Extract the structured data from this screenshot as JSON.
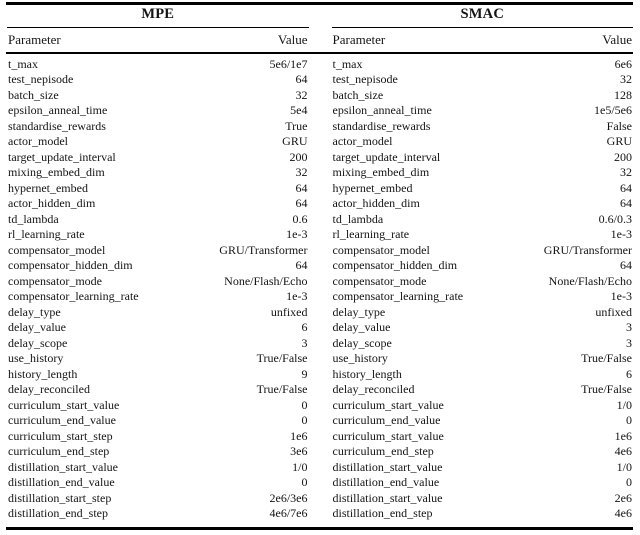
{
  "page": {
    "background": "#ffffff",
    "text_color": "#141414",
    "rule_color": "#000000"
  },
  "tables": [
    {
      "title": "MPE",
      "columns": {
        "parameter": "Parameter",
        "value": "Value"
      },
      "rows": [
        [
          "t_max",
          "5e6/1e7"
        ],
        [
          "test_nepisode",
          "64"
        ],
        [
          "batch_size",
          "32"
        ],
        [
          "epsilon_anneal_time",
          "5e4"
        ],
        [
          "standardise_rewards",
          "True"
        ],
        [
          "actor_model",
          "GRU"
        ],
        [
          "target_update_interval",
          "200"
        ],
        [
          "mixing_embed_dim",
          "32"
        ],
        [
          "hypernet_embed",
          "64"
        ],
        [
          "actor_hidden_dim",
          "64"
        ],
        [
          "td_lambda",
          "0.6"
        ],
        [
          "rl_learning_rate",
          "1e-3"
        ],
        [
          "compensator_model",
          "GRU/Transformer"
        ],
        [
          "compensator_hidden_dim",
          "64"
        ],
        [
          "compensator_mode",
          "None/Flash/Echo"
        ],
        [
          "compensator_learning_rate",
          "1e-3"
        ],
        [
          "delay_type",
          "unfixed"
        ],
        [
          "delay_value",
          "6"
        ],
        [
          "delay_scope",
          "3"
        ],
        [
          "use_history",
          "True/False"
        ],
        [
          "history_length",
          "9"
        ],
        [
          "delay_reconciled",
          "True/False"
        ],
        [
          "curriculum_start_value",
          "0"
        ],
        [
          "curriculum_end_value",
          "0"
        ],
        [
          "curriculum_start_step",
          "1e6"
        ],
        [
          "curriculum_end_step",
          "3e6"
        ],
        [
          "distillation_start_value",
          "1/0"
        ],
        [
          "distillation_end_value",
          "0"
        ],
        [
          "distillation_start_step",
          "2e6/3e6"
        ],
        [
          "distillation_end_step",
          "4e6/7e6"
        ]
      ]
    },
    {
      "title": "SMAC",
      "columns": {
        "parameter": "Parameter",
        "value": "Value"
      },
      "rows": [
        [
          "t_max",
          "6e6"
        ],
        [
          "test_nepisode",
          "32"
        ],
        [
          "batch_size",
          "128"
        ],
        [
          "epsilon_anneal_time",
          "1e5/5e6"
        ],
        [
          "standardise_rewards",
          "False"
        ],
        [
          "actor_model",
          "GRU"
        ],
        [
          "target_update_interval",
          "200"
        ],
        [
          "mixing_embed_dim",
          "32"
        ],
        [
          "hypernet_embed",
          "64"
        ],
        [
          "actor_hidden_dim",
          "64"
        ],
        [
          "td_lambda",
          "0.6/0.3"
        ],
        [
          "rl_learning_rate",
          "1e-3"
        ],
        [
          "compensator_model",
          "GRU/Transformer"
        ],
        [
          "compensator_hidden_dim",
          "64"
        ],
        [
          "compensator_mode",
          "None/Flash/Echo"
        ],
        [
          "compensator_learning_rate",
          "1e-3"
        ],
        [
          "delay_type",
          "unfixed"
        ],
        [
          "delay_value",
          "3"
        ],
        [
          "delay_scope",
          "3"
        ],
        [
          "use_history",
          "True/False"
        ],
        [
          "history_length",
          "6"
        ],
        [
          "delay_reconciled",
          "True/False"
        ],
        [
          "curriculum_start_value",
          "1/0"
        ],
        [
          "curriculum_end_value",
          "0"
        ],
        [
          "curriculum_start_value",
          "1e6"
        ],
        [
          "curriculum_end_step",
          "4e6"
        ],
        [
          "distillation_start_value",
          "1/0"
        ],
        [
          "distillation_end_value",
          "0"
        ],
        [
          "distillation_start_value",
          "2e6"
        ],
        [
          "distillation_end_step",
          "4e6"
        ]
      ]
    }
  ]
}
